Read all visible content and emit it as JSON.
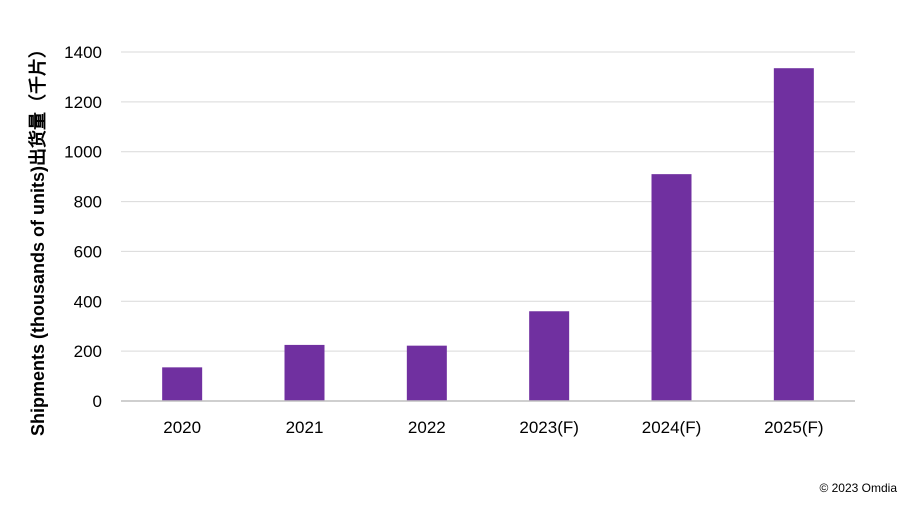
{
  "chart_data": {
    "type": "bar",
    "categories": [
      "2020",
      "2021",
      "2022",
      "2023(F)",
      "2024(F)",
      "2025(F)"
    ],
    "values": [
      135,
      225,
      222,
      360,
      910,
      1335
    ],
    "title": "",
    "xlabel": "",
    "ylabel": "Shipments (thousands of units)出货量（千片）",
    "ylim": [
      0,
      1400
    ],
    "yticks": [
      0,
      200,
      400,
      600,
      800,
      1000,
      1200,
      1400
    ],
    "grid": true,
    "legend": "none",
    "bar_color": "#7030a0",
    "grid_color": "#d9d9d9",
    "axis_color": "#bfbfbf"
  },
  "footer": {
    "source": "© 2023 Omdia"
  }
}
